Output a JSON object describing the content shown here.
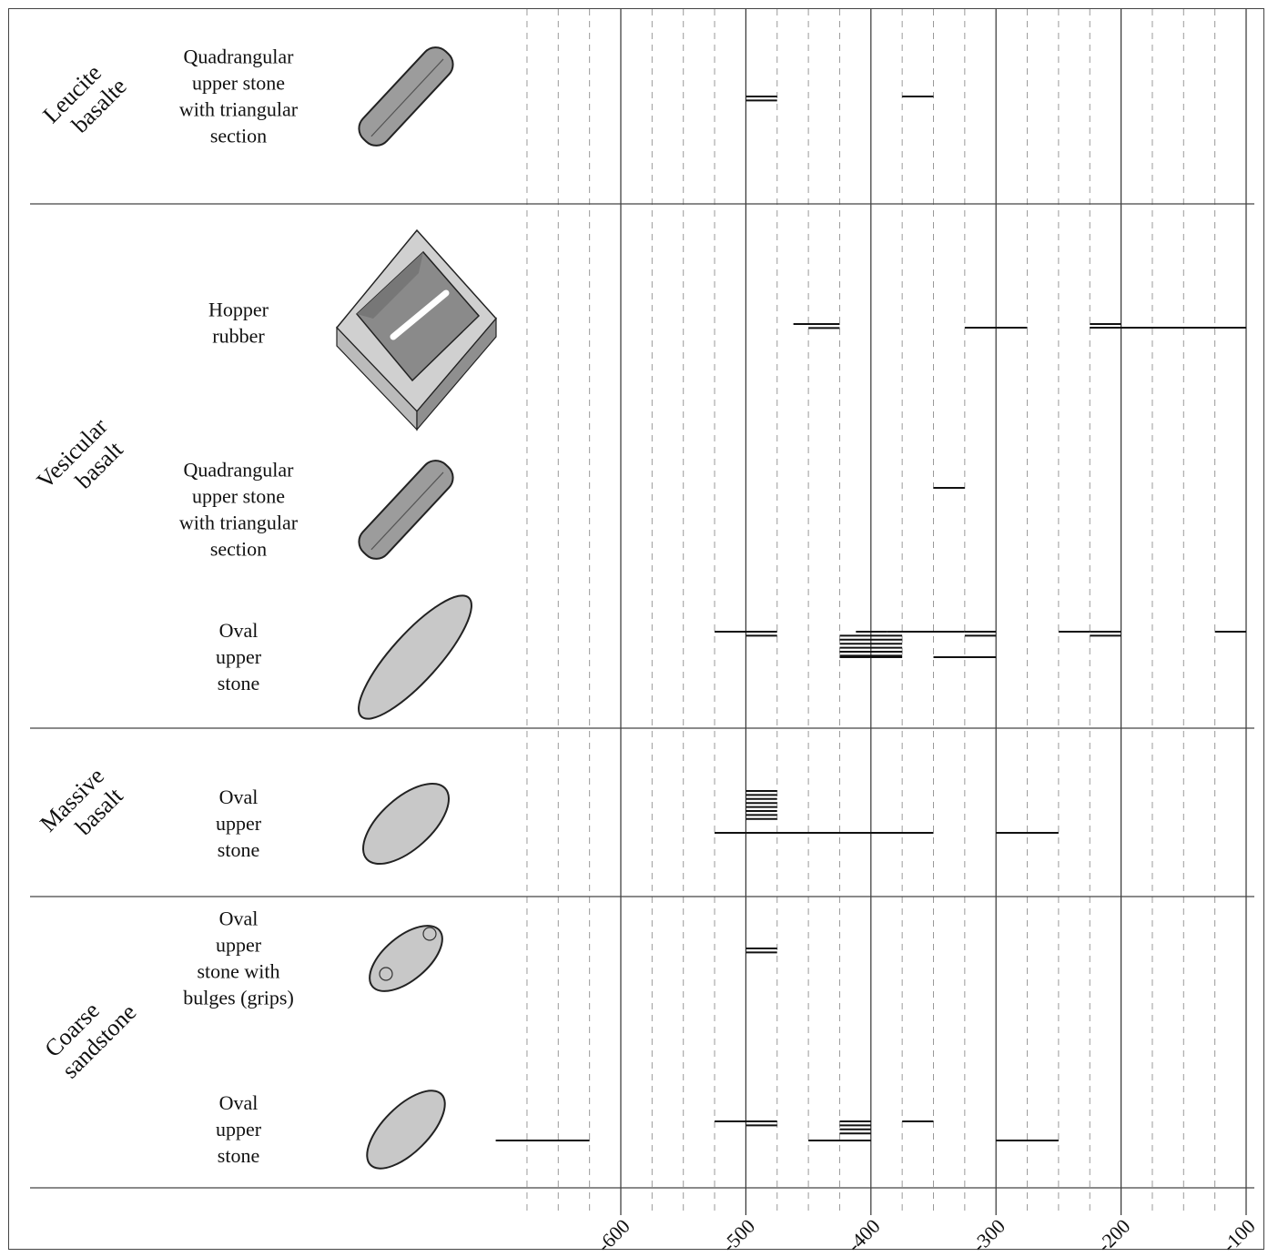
{
  "chart_data": {
    "type": "range-bars",
    "title": "",
    "xlabel": "",
    "ylabel": "",
    "x_ticks": [
      -600,
      -500,
      -400,
      -300,
      -200,
      -100
    ],
    "x_tick_labels": [
      "-600",
      "-500",
      "-400",
      "-300",
      "-200",
      "-100"
    ],
    "minor_gridlines_every": 25,
    "grid": true,
    "groups": [
      {
        "rock": [
          "Leucite",
          "basalte"
        ],
        "rows": [
          {
            "label": [
              "Quadrangular",
              "upper stone",
              "with triangular",
              "section"
            ],
            "icon": "triangular-section-stone-icon",
            "bars": [
              [
                -500,
                -475
              ],
              [
                -500,
                -475
              ],
              [
                -375,
                -350
              ]
            ]
          }
        ]
      },
      {
        "rock": [
          "Vesicular",
          "basalt"
        ],
        "rows": [
          {
            "label": [
              "Hopper",
              "rubber"
            ],
            "icon": "hopper-rubber-icon",
            "bars": [
              [
                -450,
                -425
              ],
              [
                -450,
                -425
              ],
              [
                -462,
                -437
              ],
              [
                -325,
                -275
              ],
              [
                -225,
                -200
              ],
              [
                -225,
                -175
              ],
              [
                -225,
                -100
              ]
            ]
          },
          {
            "label": [
              "Quadrangular",
              "upper stone",
              "with triangular",
              "section"
            ],
            "icon": "triangular-section-stone-icon",
            "bars": [
              [
                -350,
                -325
              ]
            ]
          },
          {
            "label": [
              "Oval",
              "upper",
              "stone"
            ],
            "icon": "oval-upper-stone-icon",
            "bars": [
              [
                -412,
                -387
              ],
              [
                -425,
                -375
              ],
              [
                -425,
                -375
              ],
              [
                -425,
                -375
              ],
              [
                -425,
                -375
              ],
              [
                -425,
                -375
              ],
              [
                -425,
                -375
              ],
              [
                -425,
                -375
              ],
              [
                -375,
                -350
              ],
              [
                -387,
                -362
              ],
              [
                -362,
                -337
              ],
              [
                -350,
                -325
              ],
              [
                -325,
                -300
              ],
              [
                -325,
                -300
              ],
              [
                -525,
                -500
              ],
              [
                -500,
                -475
              ],
              [
                -500,
                -475
              ],
              [
                -350,
                -300
              ],
              [
                -250,
                -225
              ],
              [
                -225,
                -200
              ],
              [
                -225,
                -200
              ],
              [
                -125,
                -100
              ]
            ]
          }
        ]
      },
      {
        "rock": [
          "Massive",
          "basalt"
        ],
        "rows": [
          {
            "label": [
              "Oval",
              "upper",
              "stone"
            ],
            "icon": "oval-upper-stone-icon",
            "bars": [
              [
                -500,
                -475
              ],
              [
                -500,
                -475
              ],
              [
                -500,
                -475
              ],
              [
                -500,
                -475
              ],
              [
                -500,
                -475
              ],
              [
                -500,
                -475
              ],
              [
                -500,
                -475
              ],
              [
                -500,
                -475
              ],
              [
                -500,
                -450
              ],
              [
                -525,
                -475
              ],
              [
                -525,
                -350
              ],
              [
                -425,
                -375
              ],
              [
                -300,
                -250
              ]
            ]
          }
        ]
      },
      {
        "rock": [
          "Coarse",
          "sandstone"
        ],
        "rows": [
          {
            "label": [
              "Oval",
              "upper",
              "stone with",
              "bulges (grips)"
            ],
            "icon": "oval-stone-with-grips-icon",
            "bars": [
              [
                -500,
                -475
              ],
              [
                -500,
                -475
              ]
            ]
          },
          {
            "label": [
              "Oval",
              "upper",
              "stone"
            ],
            "icon": "oval-upper-stone-icon",
            "bars": [
              [
                -425,
                -400
              ],
              [
                -425,
                -400
              ],
              [
                -425,
                -400
              ],
              [
                -425,
                -400
              ],
              [
                -700,
                -625
              ],
              [
                -525,
                -500
              ],
              [
                -500,
                -475
              ],
              [
                -500,
                -475
              ],
              [
                -450,
                -400
              ],
              [
                -375,
                -350
              ],
              [
                -300,
                -250
              ]
            ]
          }
        ]
      }
    ]
  }
}
